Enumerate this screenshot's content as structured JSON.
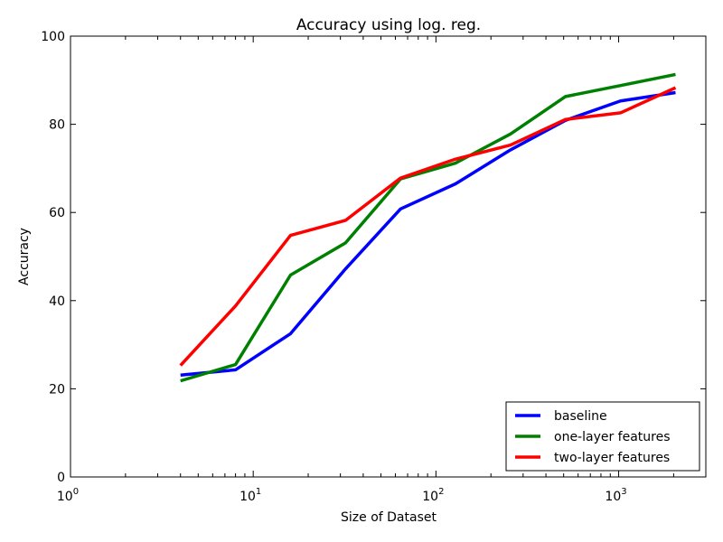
{
  "chart_data": {
    "type": "line",
    "title": "Accuracy using log. reg.",
    "xlabel": "Size of Dataset",
    "ylabel": "Accuracy",
    "xscale": "log",
    "xlim": [
      1,
      3000
    ],
    "ylim": [
      0,
      100
    ],
    "grid": false,
    "legend_position": "lower-right",
    "x": [
      4,
      8,
      16,
      32,
      64,
      128,
      256,
      512,
      1024,
      2048
    ],
    "x_ticks": [
      {
        "value": 1,
        "base": "10",
        "exp": "0"
      },
      {
        "value": 10,
        "base": "10",
        "exp": "1"
      },
      {
        "value": 100,
        "base": "10",
        "exp": "2"
      },
      {
        "value": 1000,
        "base": "10",
        "exp": "3"
      }
    ],
    "y_ticks": [
      0,
      20,
      40,
      60,
      80,
      100
    ],
    "series": [
      {
        "name": "baseline",
        "color": "#0000ff",
        "values": [
          23.1,
          24.3,
          32.5,
          47.2,
          60.8,
          66.5,
          74.2,
          80.9,
          85.3,
          87.2
        ]
      },
      {
        "name": "one-layer features",
        "color": "#008000",
        "values": [
          21.8,
          25.5,
          45.8,
          53.1,
          67.6,
          71.2,
          77.8,
          86.3,
          88.8,
          91.3
        ]
      },
      {
        "name": "two-layer features",
        "color": "#ff0000",
        "values": [
          25.3,
          38.8,
          54.8,
          58.2,
          67.8,
          72.1,
          75.3,
          81.1,
          82.6,
          88.3
        ]
      }
    ]
  }
}
